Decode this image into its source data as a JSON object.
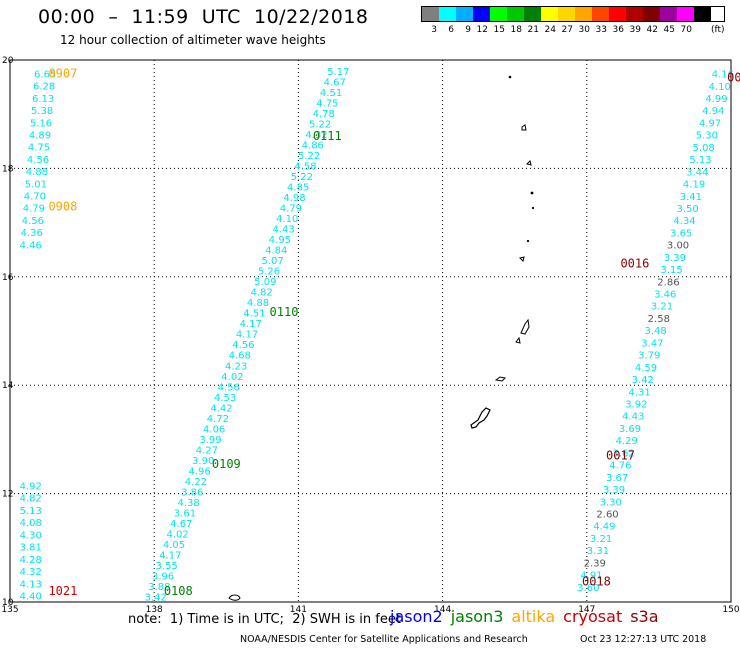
{
  "header": {
    "title": "00:00  –  11:59  UTC  10/22/2018",
    "subtitle": "12 hour collection of altimeter wave heights"
  },
  "legend": {
    "unit": "(ft)",
    "bins": [
      {
        "label": "3",
        "color": "#7f7f7f"
      },
      {
        "label": "6",
        "color": "#00ffff"
      },
      {
        "label": "9",
        "color": "#00b0ff"
      },
      {
        "label": "12",
        "color": "#0000ff"
      },
      {
        "label": "15",
        "color": "#00ff00"
      },
      {
        "label": "18",
        "color": "#00c800"
      },
      {
        "label": "21",
        "color": "#008000"
      },
      {
        "label": "24",
        "color": "#ffff00"
      },
      {
        "label": "27",
        "color": "#ffd700"
      },
      {
        "label": "30",
        "color": "#ffa500"
      },
      {
        "label": "33",
        "color": "#ff4500"
      },
      {
        "label": "36",
        "color": "#ff0000"
      },
      {
        "label": "39",
        "color": "#b00000"
      },
      {
        "label": "42",
        "color": "#800000"
      },
      {
        "label": "45",
        "color": "#a000a0"
      },
      {
        "label": "70",
        "color": "#ff00ff"
      },
      {
        "label": "",
        "color": "#000000"
      }
    ]
  },
  "map": {
    "lon_ticks": [
      "135",
      "138",
      "141",
      "144",
      "147",
      "150"
    ],
    "lat_ticks": [
      "10",
      "12",
      "14",
      "16",
      "18",
      "20"
    ],
    "lon_range": [
      135,
      150
    ],
    "lat_range": [
      10,
      20
    ]
  },
  "colors": {
    "cyan": "#00e5ee",
    "gray": "#555555",
    "jason2": "#0000ff",
    "jason3": "#008000",
    "altika": "#ffa500",
    "cryosat": "#cc0000",
    "s3a": "#8b0000"
  },
  "tracks": [
    {
      "lon0": 135.5,
      "lat0": 19.75,
      "lon1": 135.2,
      "lat1": 16.6,
      "values": [
        "6.65",
        "6.28",
        "6.13",
        "5.38",
        "5.16",
        "4.89",
        "4.75",
        "4.56",
        "4.88",
        "5.01",
        "4.70",
        "4.79",
        "4.56",
        "4.36",
        "4.46"
      ],
      "colors": []
    },
    {
      "lon0": 141.6,
      "lat0": 19.8,
      "lon1": 137.8,
      "lat1": 10.1,
      "values": [
        "5.17",
        "4.67",
        "4.51",
        "4.75",
        "4.78",
        "5.22",
        "4.32",
        "4.86",
        "5.22",
        "4.58",
        "5.22",
        "4.85",
        "4.98",
        "4.79",
        "4.10",
        "4.43",
        "4.95",
        "4.84",
        "5.07",
        "5.26",
        "5.09",
        "4.82",
        "4.88",
        "4.51",
        "4.17",
        "4.17",
        "4.56",
        "4.68",
        "4.23",
        "4.02",
        "4.56",
        "4.53",
        "4.42",
        "4.72",
        "4.06",
        "3.99",
        "4.27",
        "3.90",
        "4.96",
        "4.22",
        "3.86",
        "4.38",
        "3.61",
        "4.67",
        "4.02",
        "4.05",
        "4.17",
        "3.55",
        "3.96",
        "3.88",
        "3.42"
      ],
      "colors": []
    },
    {
      "lon0": 135.2,
      "lat0": 12.15,
      "lon1": 135.2,
      "lat1": 10.12,
      "values": [
        "4.92",
        "4.82",
        "5.13",
        "4.08",
        "4.30",
        "3.81",
        "4.28",
        "4.32",
        "4.13",
        "4.40"
      ],
      "colors": []
    },
    {
      "lon0": 149.6,
      "lat0": 19.75,
      "lon1": 146.8,
      "lat1": 10.28,
      "values": [
        "4.16",
        "4.10",
        "4.99",
        "4.94",
        "4.97",
        "5.30",
        "5.08",
        "5.13",
        "3.44",
        "4.19",
        "3.41",
        "3.50",
        "4.34",
        "3.65",
        "3.00",
        "3.39",
        "3.15",
        "2.86",
        "3.46",
        "3.21",
        "2.58",
        "3.48",
        "3.47",
        "3.79",
        "4.59",
        "3.42",
        "4.31",
        "3.92",
        "4.43",
        "3.69",
        "4.29",
        "3.62",
        "4.76",
        "3.67",
        "3.39",
        "3.30",
        "2.60",
        "4.49",
        "3.21",
        "3.31",
        "2.39",
        "4.91",
        "3.60"
      ],
      "colors": {
        "14": "gray",
        "17": "gray",
        "20": "gray",
        "36": "gray",
        "40": "gray"
      }
    }
  ],
  "time_labels": [
    {
      "text": "0907",
      "lon": 135.8,
      "lat": 19.75,
      "color": "altika"
    },
    {
      "text": "0908",
      "lon": 135.8,
      "lat": 17.3,
      "color": "altika"
    },
    {
      "text": "0111",
      "lon": 141.3,
      "lat": 18.6,
      "color": "jason3"
    },
    {
      "text": "0110",
      "lon": 140.4,
      "lat": 15.35,
      "color": "jason3"
    },
    {
      "text": "0109",
      "lon": 139.2,
      "lat": 12.55,
      "color": "jason3"
    },
    {
      "text": "0108",
      "lon": 138.2,
      "lat": 10.2,
      "color": "jason3"
    },
    {
      "text": "1021",
      "lon": 135.8,
      "lat": 10.2,
      "color": "cryosat"
    },
    {
      "text": "0016",
      "lon": 147.7,
      "lat": 16.25,
      "color": "s3a"
    },
    {
      "text": "0017",
      "lon": 147.4,
      "lat": 12.7,
      "color": "s3a"
    },
    {
      "text": "0018",
      "lon": 146.9,
      "lat": 10.38,
      "color": "s3a"
    },
    {
      "text": "00",
      "lon": 149.92,
      "lat": 19.68,
      "color": "s3a"
    }
  ],
  "footer": {
    "note": "note:  1) Time is in UTC;  2) SWH is in feet",
    "satellites": [
      {
        "name": "jason2",
        "color": "jason2"
      },
      {
        "name": "jason3",
        "color": "jason3"
      },
      {
        "name": "altika",
        "color": "altika"
      },
      {
        "name": "cryosat",
        "color": "cryosat"
      },
      {
        "name": "s3a",
        "color": "s3a"
      }
    ],
    "credit": "NOAA/NESDIS Center for Satellite Applications and Research",
    "timestamp": "Oct 23 12:27:13 UTC 2018"
  }
}
